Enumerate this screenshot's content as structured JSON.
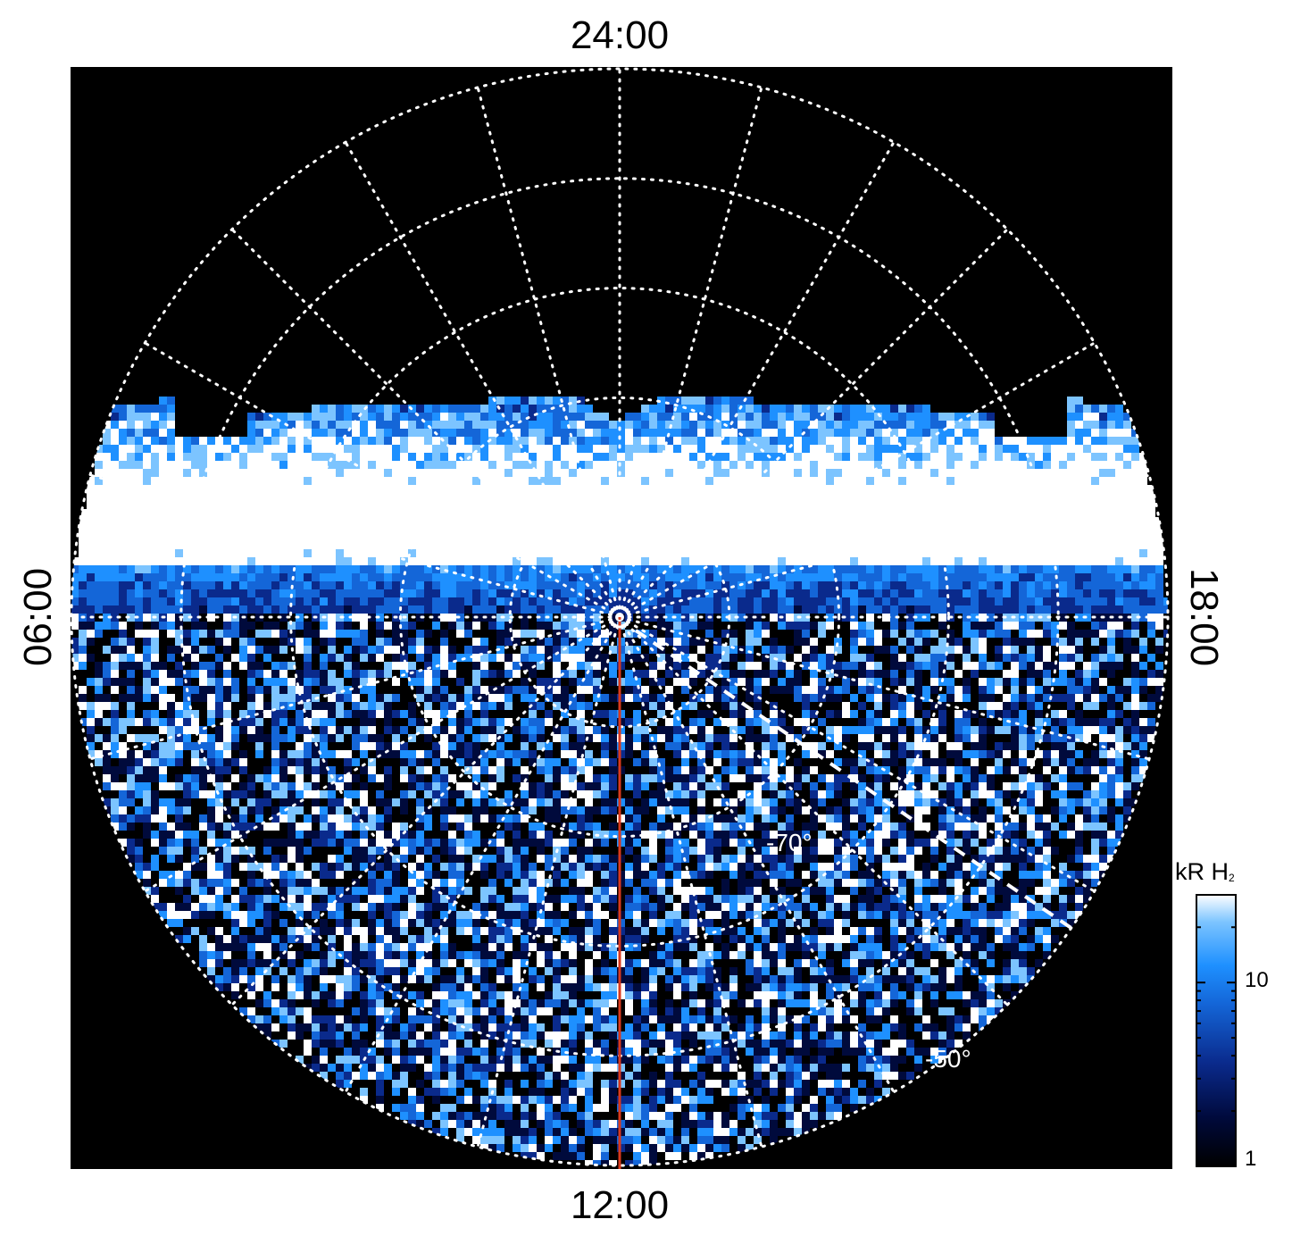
{
  "chart_data": {
    "type": "heatmap",
    "projection": "polar",
    "local_time_labels": {
      "top": "24:00",
      "right": "18:00",
      "bottom": "12:00",
      "left": "06:00"
    },
    "latitude_labels": [
      "-70°",
      "-50°"
    ],
    "latitude_circles_deg": [
      -80,
      -70,
      -60,
      -50
    ],
    "meridian_spacing_hours": 1,
    "grid": true,
    "colorbar": {
      "title": "kR H",
      "title_subscript": "2",
      "tick_labels": [
        "10",
        "1"
      ],
      "scale": "log",
      "range": [
        1,
        30
      ],
      "placement": "bottom-right"
    },
    "colors": {
      "background": "#000000",
      "grid": "#ffffff",
      "meridian_line": "#d9391c",
      "colormap": [
        "#000000",
        "#000a3c",
        "#0a2a8c",
        "#1466d8",
        "#1e90ff",
        "#7cc4ff",
        "#ffffff"
      ]
    },
    "emission_coverage": "night-side main band near -75° to -80°, diffuse emission on dayside",
    "annotations": [
      {
        "type": "meridian",
        "local_time": "12:00",
        "color": "#d9391c"
      },
      {
        "type": "dashed-line",
        "from_local_time": "16:00",
        "color": "#ffffff"
      },
      {
        "type": "pole-marker"
      }
    ]
  }
}
